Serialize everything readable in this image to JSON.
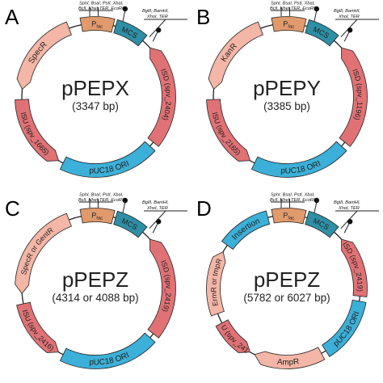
{
  "colors": {
    "pink": "#f4b6a6",
    "red": "#e07275",
    "orange": "#e09a6c",
    "teal": "#2e8fa5",
    "blue": "#3cb0d8",
    "outline": "#222222"
  },
  "sites_left": {
    "line1": "SphI, BsaI, PstI, XbaI,",
    "line2a": "BclI, NheI,",
    "line2b": "TER, EcoRI"
  },
  "sites_right": {
    "line1": "BglII, BamHI,",
    "line2": "XhoI, TER"
  },
  "panels": [
    {
      "letter": "A",
      "name": "pPEPX",
      "size": "(3347 bp)",
      "segments": [
        {
          "label": "P",
          "sub": "lac",
          "color": "orange"
        },
        {
          "label": "MCS",
          "color": "teal"
        },
        {
          "label": "ISD (spv_2404)",
          "color": "red"
        },
        {
          "label": "pUC18 ORI",
          "color": "blue"
        },
        {
          "label": "ISU (spv_1665)",
          "color": "red"
        },
        {
          "label": "SpecR",
          "color": "pink"
        }
      ]
    },
    {
      "letter": "B",
      "name": "pPEPY",
      "size": "(3385 bp)",
      "segments": [
        {
          "label": "P",
          "sub": "lac",
          "color": "orange"
        },
        {
          "label": "MCS",
          "color": "teal"
        },
        {
          "label": "ISD (spv_1196)",
          "color": "red"
        },
        {
          "label": "pUC18 ORI",
          "color": "blue"
        },
        {
          "label": "ISU (spv_2165)",
          "color": "red"
        },
        {
          "label": "KanR",
          "color": "pink"
        }
      ]
    },
    {
      "letter": "C",
      "name": "pPEPZ",
      "size": "(4314 or 4088 bp)",
      "segments": [
        {
          "label": "P",
          "sub": "lac",
          "color": "orange"
        },
        {
          "label": "MCS",
          "color": "teal"
        },
        {
          "label": "ISD (spv_2419)",
          "color": "red"
        },
        {
          "label": "pUC18 ORI",
          "color": "blue"
        },
        {
          "label": "ISU (spv_2416)",
          "color": "red"
        },
        {
          "label": "SpecR or GentR",
          "color": "pink"
        }
      ]
    },
    {
      "letter": "D",
      "name": "pPEPZ",
      "size": "(5782 or 6027 bp)",
      "segments": [
        {
          "label": "P",
          "sub": "lac",
          "color": "orange"
        },
        {
          "label": "MCS",
          "color": "teal"
        },
        {
          "label": "ISD (spv_2419)",
          "color": "red"
        },
        {
          "label": "pUC18 ORI",
          "color": "blue"
        },
        {
          "label": "AmpR",
          "color": "pink"
        },
        {
          "label": "ISU (spv_2416)",
          "color": "red"
        },
        {
          "label": "ErmR or tmpR",
          "color": "pink"
        },
        {
          "label": "Insertion",
          "color": "blue"
        }
      ]
    }
  ]
}
